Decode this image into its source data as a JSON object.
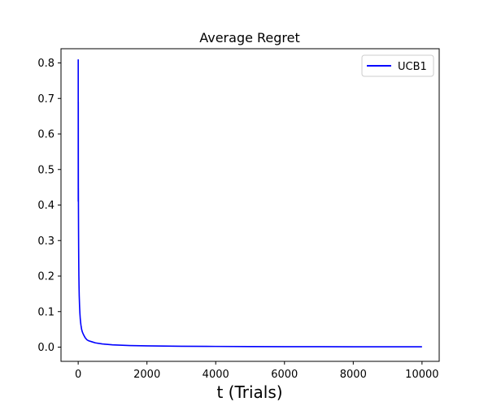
{
  "chart_data": {
    "type": "line",
    "title": "Average Regret",
    "xlabel": "t (Trials)",
    "ylabel": "",
    "xlim": [
      -500,
      10500
    ],
    "ylim": [
      -0.04,
      0.84
    ],
    "xticks": [
      0,
      2000,
      4000,
      6000,
      8000,
      10000
    ],
    "yticks": [
      0.0,
      0.1,
      0.2,
      0.3,
      0.4,
      0.5,
      0.6,
      0.7,
      0.8
    ],
    "xtick_labels": [
      "0",
      "2000",
      "4000",
      "6000",
      "8000",
      "10000"
    ],
    "ytick_labels": [
      "0.0",
      "0.1",
      "0.2",
      "0.3",
      "0.4",
      "0.5",
      "0.6",
      "0.7",
      "0.8"
    ],
    "grid": false,
    "legend_position": "upper right",
    "series": [
      {
        "name": "UCB1",
        "color": "#0000ff",
        "x": [
          1,
          2,
          3,
          4,
          5,
          6,
          8,
          10,
          13,
          16,
          20,
          25,
          30,
          40,
          50,
          60,
          70,
          80,
          100,
          120,
          150,
          200,
          250,
          300,
          400,
          500,
          700,
          1000,
          1500,
          2000,
          3000,
          4000,
          5000,
          6000,
          7000,
          8000,
          9000,
          10000
        ],
        "values": [
          0.81,
          0.41,
          0.69,
          0.52,
          0.45,
          0.44,
          0.38,
          0.33,
          0.28,
          0.24,
          0.2,
          0.17,
          0.145,
          0.115,
          0.095,
          0.08,
          0.07,
          0.062,
          0.05,
          0.043,
          0.036,
          0.027,
          0.021,
          0.018,
          0.015,
          0.012,
          0.009,
          0.0065,
          0.0045,
          0.0035,
          0.0025,
          0.002,
          0.0016,
          0.0014,
          0.0012,
          0.0011,
          0.001,
          0.0009
        ]
      }
    ]
  }
}
